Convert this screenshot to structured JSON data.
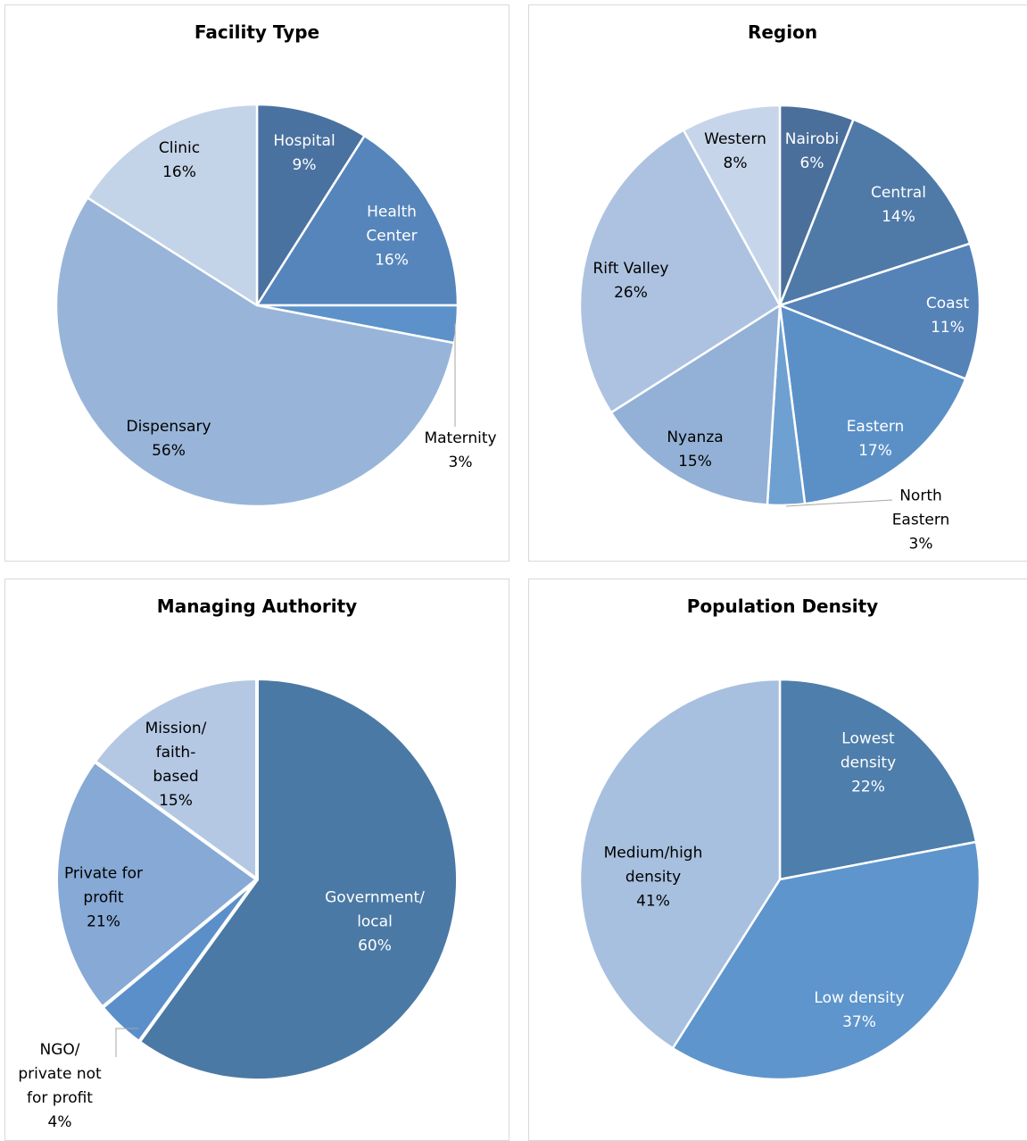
{
  "chart_data": [
    {
      "type": "pie",
      "title": "Facility Type",
      "categories": [
        "Hospital",
        "Health Center",
        "Maternity",
        "Dispensary",
        "Clinic"
      ],
      "values": [
        9,
        16,
        3,
        56,
        16
      ],
      "value_labels": [
        "9%",
        "16%",
        "3%",
        "56%",
        "16%"
      ],
      "colors": [
        "#4a72a0",
        "#5585bb",
        "#5c92c9",
        "#98b5d9",
        "#c3d3e8"
      ]
    },
    {
      "type": "pie",
      "title": "Region",
      "categories": [
        "Nairobi",
        "Central",
        "Coast",
        "Eastern",
        "North Eastern",
        "Nyanza",
        "Rift Valley",
        "Western"
      ],
      "values": [
        6,
        14,
        11,
        17,
        3,
        15,
        26,
        8
      ],
      "value_labels": [
        "6%",
        "14%",
        "11%",
        "17%",
        "3%",
        "15%",
        "26%",
        "8%"
      ],
      "colors": [
        "#4a6f9a",
        "#4f7aa8",
        "#5583b8",
        "#5b90c7",
        "#6ea0d2",
        "#93b1d6",
        "#acc2e0",
        "#c6d5ea"
      ]
    },
    {
      "type": "pie",
      "title": "Managing Authority",
      "categories": [
        "Government/ local",
        "NGO/ private not for profit",
        "Private for profit",
        "Mission/ faith-based"
      ],
      "values": [
        60,
        4,
        21,
        15
      ],
      "value_labels": [
        "60%",
        "4%",
        "21%",
        "15%"
      ],
      "colors": [
        "#4b79a5",
        "#5a8fca",
        "#86a9d6",
        "#b4c8e4"
      ]
    },
    {
      "type": "pie",
      "title": "Population Density",
      "categories": [
        "Lowest density",
        "Low density",
        "Medium/high density"
      ],
      "values": [
        22,
        37,
        41
      ],
      "value_labels": [
        "22%",
        "37%",
        "41%"
      ],
      "colors": [
        "#4e7eab",
        "#5e95cc",
        "#a8c0df"
      ]
    }
  ]
}
